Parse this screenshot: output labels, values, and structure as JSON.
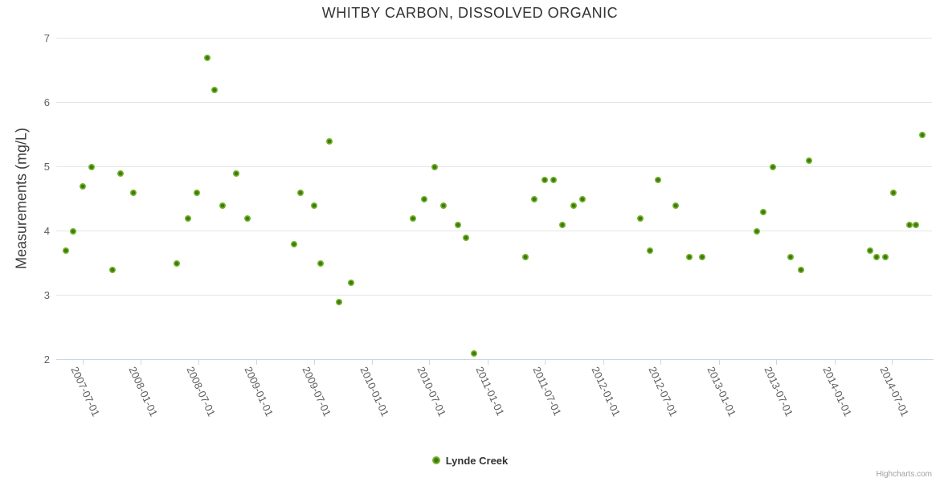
{
  "chart": {
    "title": "WHITBY CARBON, DISSOLVED ORGANIC",
    "y_axis_title": "Measurements (mg/L)"
  },
  "legend": {
    "label": "Lynde Creek"
  },
  "credits": {
    "text": "Highcharts.com"
  },
  "colors": {
    "marker_outer": "#74b52a",
    "marker_inner": "#3e7a10",
    "gridline": "#e6e6e6",
    "axis_line": "#ccd6eb",
    "tick_label": "#606060",
    "title_text": "#333333"
  },
  "chart_data": {
    "type": "scatter",
    "title": "WHITBY CARBON, DISSOLVED ORGANIC",
    "xlabel": "",
    "ylabel": "Measurements (mg/L)",
    "ylim": [
      2,
      7
    ],
    "y_ticks": [
      7,
      6,
      5,
      4,
      3,
      2
    ],
    "grid": "horizontal",
    "legend_position": "bottom-center",
    "x_axis": {
      "type": "datetime",
      "min": "2007-04-09",
      "max": "2014-11-05",
      "tick_labels": [
        "2007-07-01",
        "2008-01-01",
        "2008-07-01",
        "2009-01-01",
        "2009-07-01",
        "2010-01-01",
        "2010-07-01",
        "2011-01-01",
        "2011-07-01",
        "2012-01-01",
        "2012-07-01",
        "2013-01-01",
        "2013-07-01",
        "2014-01-01",
        "2014-07-01"
      ]
    },
    "series": [
      {
        "name": "Lynde Creek",
        "marker_color": "#74b52a",
        "points": [
          [
            "2007-05-09",
            3.7
          ],
          [
            "2007-06-01",
            4.0
          ],
          [
            "2007-07-03",
            4.7
          ],
          [
            "2007-07-29",
            5.0
          ],
          [
            "2007-10-03",
            3.4
          ],
          [
            "2007-10-29",
            4.9
          ],
          [
            "2007-12-09",
            4.6
          ],
          [
            "2008-04-23",
            3.5
          ],
          [
            "2008-05-29",
            4.2
          ],
          [
            "2008-06-26",
            4.6
          ],
          [
            "2008-07-29",
            6.7
          ],
          [
            "2008-08-21",
            6.2
          ],
          [
            "2008-09-16",
            4.4
          ],
          [
            "2008-10-29",
            4.9
          ],
          [
            "2008-12-04",
            4.2
          ],
          [
            "2009-04-29",
            3.8
          ],
          [
            "2009-05-19",
            4.6
          ],
          [
            "2009-07-02",
            4.4
          ],
          [
            "2009-07-22",
            3.5
          ],
          [
            "2009-08-19",
            5.4
          ],
          [
            "2009-09-19",
            2.9
          ],
          [
            "2009-10-27",
            3.2
          ],
          [
            "2010-05-10",
            4.2
          ],
          [
            "2010-06-14",
            4.5
          ],
          [
            "2010-07-18",
            5.0
          ],
          [
            "2010-08-14",
            4.4
          ],
          [
            "2010-09-30",
            4.1
          ],
          [
            "2010-10-25",
            3.9
          ],
          [
            "2010-11-19",
            2.1
          ],
          [
            "2011-04-30",
            3.6
          ],
          [
            "2011-05-28",
            4.5
          ],
          [
            "2011-07-01",
            4.8
          ],
          [
            "2011-07-29",
            4.8
          ],
          [
            "2011-08-26",
            4.1
          ],
          [
            "2011-10-01",
            4.4
          ],
          [
            "2011-10-28",
            4.5
          ],
          [
            "2012-04-27",
            4.2
          ],
          [
            "2012-05-28",
            3.7
          ],
          [
            "2012-06-22",
            4.8
          ],
          [
            "2012-08-17",
            4.4
          ],
          [
            "2012-09-30",
            3.6
          ],
          [
            "2012-11-10",
            3.6
          ],
          [
            "2013-05-01",
            4.0
          ],
          [
            "2013-05-21",
            4.3
          ],
          [
            "2013-06-21",
            5.0
          ],
          [
            "2013-08-16",
            3.6
          ],
          [
            "2013-09-18",
            3.4
          ],
          [
            "2013-10-13",
            5.1
          ],
          [
            "2014-04-23",
            3.7
          ],
          [
            "2014-05-14",
            3.6
          ],
          [
            "2014-06-11",
            3.6
          ],
          [
            "2014-07-07",
            4.6
          ],
          [
            "2014-08-27",
            4.1
          ],
          [
            "2014-09-16",
            4.1
          ],
          [
            "2014-10-06",
            5.5
          ]
        ]
      }
    ]
  }
}
